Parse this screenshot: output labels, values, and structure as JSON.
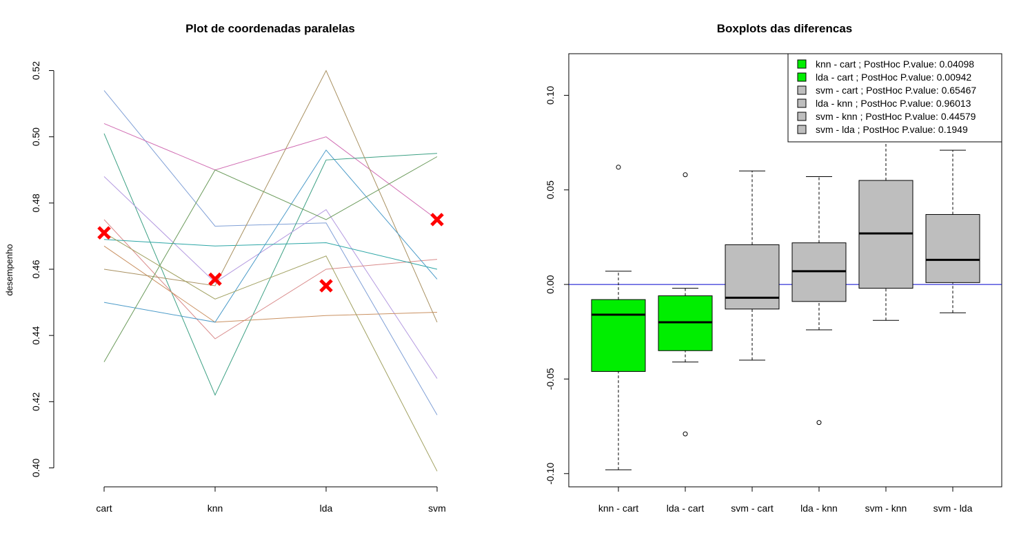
{
  "chart_data": [
    {
      "type": "line",
      "title": "Plot de coordenadas paralelas",
      "xlabel": "",
      "ylabel": "desempenho",
      "categories": [
        "cart",
        "knn",
        "lda",
        "svm"
      ],
      "ylim": [
        0.4,
        0.52
      ],
      "yticks": [
        "0.40",
        "0.42",
        "0.44",
        "0.46",
        "0.48",
        "0.50",
        "0.52"
      ],
      "series": [
        {
          "color": "#7f9fd6",
          "values": [
            0.514,
            0.473,
            0.474,
            0.416
          ]
        },
        {
          "color": "#d06bb2",
          "values": [
            0.504,
            0.49,
            0.5,
            0.475
          ]
        },
        {
          "color": "#3a9f82",
          "values": [
            0.501,
            0.422,
            0.493,
            0.495
          ]
        },
        {
          "color": "#b49ae0",
          "values": [
            0.488,
            0.456,
            0.478,
            0.427
          ]
        },
        {
          "color": "#d98a8a",
          "values": [
            0.475,
            0.439,
            0.46,
            0.463
          ]
        },
        {
          "color": "#2aa5a5",
          "values": [
            0.469,
            0.467,
            0.468,
            0.46
          ]
        },
        {
          "color": "#c99060",
          "values": [
            0.467,
            0.444,
            0.446,
            0.447
          ]
        },
        {
          "color": "#a89060",
          "values": [
            0.46,
            0.455,
            0.52,
            0.444
          ]
        },
        {
          "color": "#4a9ac8",
          "values": [
            0.45,
            0.444,
            0.496,
            0.457
          ]
        },
        {
          "color": "#6a9a5a",
          "values": [
            0.432,
            0.49,
            0.475,
            0.494
          ]
        },
        {
          "color": "#a0a060",
          "values": [
            0.471,
            0.451,
            0.464,
            0.399
          ]
        }
      ],
      "markers": {
        "shape": "x",
        "color": "#ff0000",
        "values": [
          0.471,
          0.457,
          0.455,
          0.475
        ]
      }
    },
    {
      "type": "box",
      "title": "Boxplots das diferencas",
      "xlabel": "",
      "ylabel": "",
      "categories": [
        "knn - cart",
        "lda - cart",
        "svm - cart",
        "lda - knn",
        "svm - knn",
        "svm - lda"
      ],
      "ylim": [
        -0.107,
        0.122
      ],
      "yticks": [
        "-0.10",
        "-0.05",
        "0.00",
        "0.05",
        "0.10"
      ],
      "reference_line": {
        "y": 0.0,
        "color": "#0000cd"
      },
      "boxes": [
        {
          "fill": "#00ee00",
          "whisker_low": -0.098,
          "q1": -0.046,
          "median": -0.016,
          "q3": -0.008,
          "whisker_high": 0.007,
          "outliers": [
            0.062
          ]
        },
        {
          "fill": "#00ee00",
          "whisker_low": -0.041,
          "q1": -0.035,
          "median": -0.02,
          "q3": -0.006,
          "whisker_high": -0.002,
          "outliers": [
            0.058,
            -0.079
          ]
        },
        {
          "fill": "#bebebe",
          "whisker_low": -0.04,
          "q1": -0.013,
          "median": -0.007,
          "q3": 0.021,
          "whisker_high": 0.06,
          "outliers": []
        },
        {
          "fill": "#bebebe",
          "whisker_low": -0.024,
          "q1": -0.009,
          "median": 0.007,
          "q3": 0.022,
          "whisker_high": 0.057,
          "outliers": [
            -0.073
          ]
        },
        {
          "fill": "#bebebe",
          "whisker_low": -0.019,
          "q1": -0.002,
          "median": 0.027,
          "q3": 0.055,
          "whisker_high": 0.122,
          "outliers": []
        },
        {
          "fill": "#bebebe",
          "whisker_low": -0.015,
          "q1": 0.001,
          "median": 0.013,
          "q3": 0.037,
          "whisker_high": 0.071,
          "outliers": []
        }
      ],
      "legend": {
        "placement": "top-right",
        "entries": [
          {
            "label": "knn - cart  ; PostHoc P.value: 0.04098",
            "fill": "#00ee00"
          },
          {
            "label": "lda - cart  ; PostHoc P.value: 0.00942",
            "fill": "#00ee00"
          },
          {
            "label": "svm - cart  ; PostHoc P.value: 0.65467",
            "fill": "#bebebe"
          },
          {
            "label": "lda - knn  ; PostHoc P.value: 0.96013",
            "fill": "#bebebe"
          },
          {
            "label": "svm - knn  ; PostHoc P.value: 0.44579",
            "fill": "#bebebe"
          },
          {
            "label": "svm - lda  ; PostHoc P.value: 0.1949",
            "fill": "#bebebe"
          }
        ]
      }
    }
  ]
}
